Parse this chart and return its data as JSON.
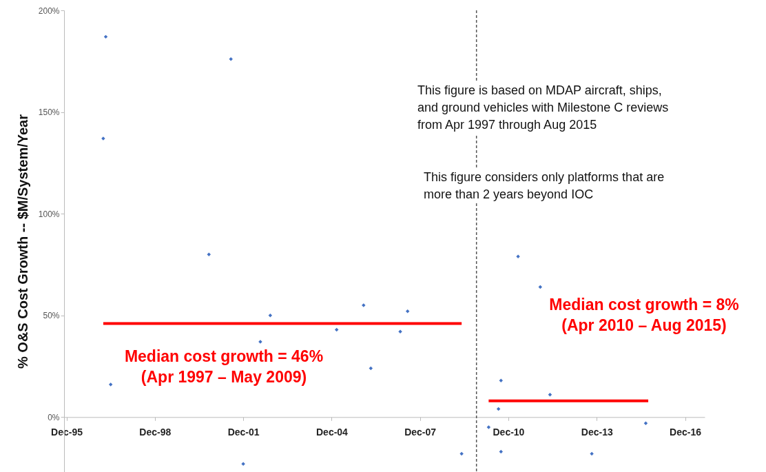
{
  "chart_data": {
    "type": "scatter",
    "ylabel": "% O&S Cost Growth -- $M/System/Year",
    "grid": false,
    "xlim": [
      "1995-11",
      "2017-08"
    ],
    "ylim": [
      -27,
      200
    ],
    "xticks": [
      {
        "value": "1995-12",
        "label": "Dec-95"
      },
      {
        "value": "1998-12",
        "label": "Dec-98"
      },
      {
        "value": "2001-12",
        "label": "Dec-01"
      },
      {
        "value": "2004-12",
        "label": "Dec-04"
      },
      {
        "value": "2007-12",
        "label": "Dec-07"
      },
      {
        "value": "2010-12",
        "label": "Dec-10"
      },
      {
        "value": "2013-12",
        "label": "Dec-13"
      },
      {
        "value": "2016-12",
        "label": "Dec-16"
      }
    ],
    "yticks": [
      {
        "value": 0,
        "label": "0%"
      },
      {
        "value": 50,
        "label": "50%"
      },
      {
        "value": 100,
        "label": "100%"
      },
      {
        "value": 150,
        "label": "150%"
      },
      {
        "value": 200,
        "label": "200%"
      }
    ],
    "series": [
      {
        "marker": "diamond",
        "color": "#4472c4",
        "x": [
          "1997-04",
          "1997-03",
          "1997-06",
          "2000-10",
          "2001-07",
          "2001-12",
          "2002-07",
          "2002-11",
          "2005-02",
          "2006-01",
          "2006-04",
          "2007-04",
          "2007-07",
          "2009-05",
          "2010-04",
          "2010-08",
          "2010-09",
          "2010-09",
          "2011-04",
          "2012-01",
          "2012-05",
          "2013-10",
          "2015-08"
        ],
        "values": [
          187,
          137,
          16,
          80,
          176,
          -23,
          37,
          50,
          43,
          55,
          24,
          42,
          52,
          -18,
          -5,
          4,
          18,
          -17,
          79,
          64,
          11,
          -18,
          -3
        ]
      },
      {
        "type": "line",
        "marker": "none",
        "color": "#ff0000",
        "x": [
          "1997-03",
          "2009-05"
        ],
        "values": [
          46,
          46
        ]
      },
      {
        "type": "line",
        "marker": "none",
        "color": "#ff0000",
        "x": [
          "2010-04",
          "2015-09"
        ],
        "values": [
          8,
          8
        ]
      }
    ],
    "ref_lines": [
      {
        "axis": "x",
        "value": "2009-11",
        "color": "#555555",
        "line_style": "dashed"
      }
    ],
    "annotations": [
      "This figure is based on MDAP aircraft, ships, and ground vehicles with Milestone C reviews from Apr 1997 through Aug 2015",
      "This figure considers only platforms that are more than 2 years beyond IOC",
      "Median cost growth = 46% (Apr 1997 – May 2009)",
      "Median cost growth = 8% (Apr 2010 – Aug 2015)"
    ]
  }
}
